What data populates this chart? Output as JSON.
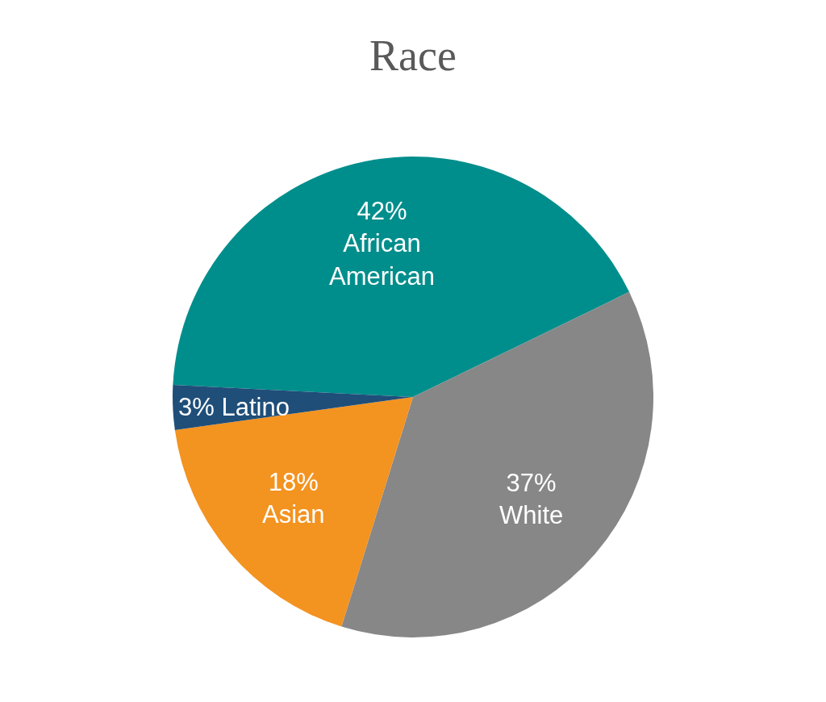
{
  "chart_data": {
    "type": "pie",
    "title": "Race",
    "categories": [
      "African American",
      "White",
      "Asian",
      "Latino"
    ],
    "values": [
      42,
      37,
      18,
      3
    ],
    "colors": [
      "#008e8c",
      "#878787",
      "#f39320",
      "#1f4e79"
    ],
    "value_labels": [
      "42%",
      "37%",
      "18%",
      "3%"
    ],
    "legend": false
  }
}
